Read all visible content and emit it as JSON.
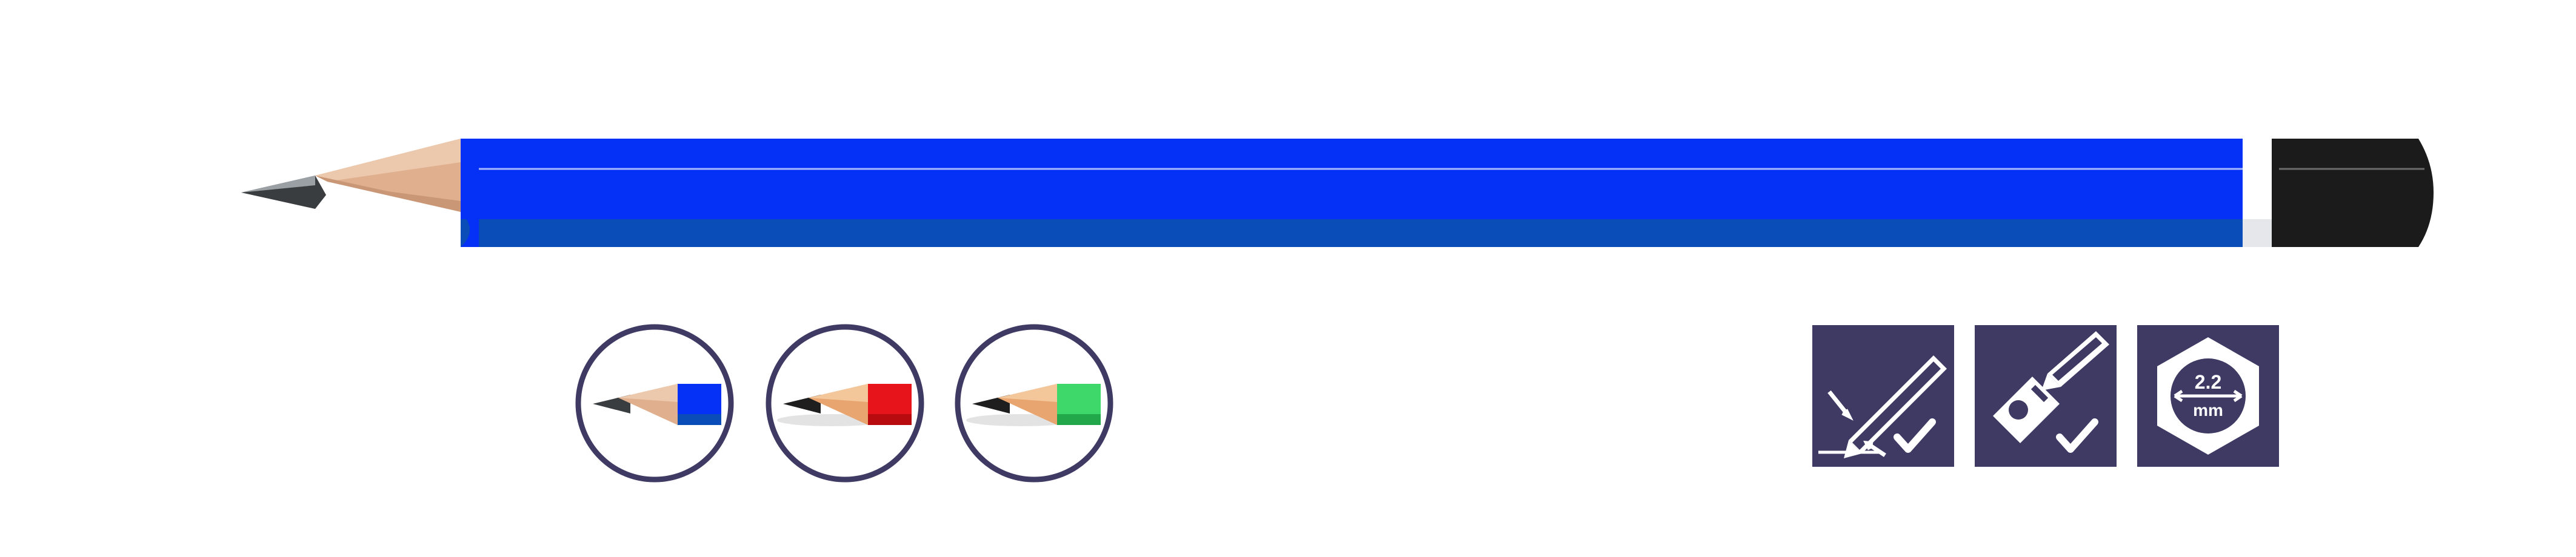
{
  "colors": {
    "barrel_top": "#0431f5",
    "barrel_bottom": "#0a4cb8",
    "end_cap": "#1b1b1b",
    "wood": "#e2b89a",
    "lead": "#3a3d3f",
    "icon_bg": "#3f3a63",
    "variant_blue": "#0431f5",
    "variant_red": "#e8141b",
    "variant_green": "#3ed86a"
  },
  "product": {
    "main_pencil_icon": "pencil-icon"
  },
  "variants": [
    {
      "color_name": "blue",
      "icon": "pencil-tip-icon"
    },
    {
      "color_name": "red",
      "icon": "pencil-tip-icon"
    },
    {
      "color_name": "green",
      "icon": "pencil-tip-icon"
    }
  ],
  "features": [
    {
      "icon": "break-resistant-lead-icon"
    },
    {
      "icon": "easy-sharpen-icon"
    },
    {
      "icon": "lead-diameter-icon",
      "value": "2.2",
      "unit": "mm"
    }
  ]
}
